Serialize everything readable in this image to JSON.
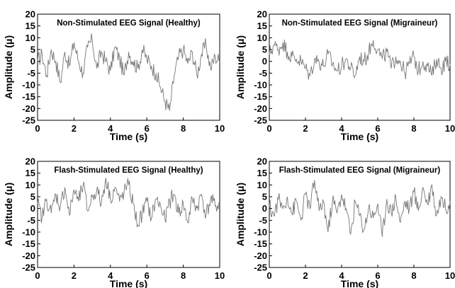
{
  "chart_data": [
    {
      "type": "line",
      "title": "Non-Stimulated EEG Signal (Healthy)",
      "xlabel": "Time (s)",
      "ylabel": "Amplitude (μ)",
      "xlim": [
        0,
        10
      ],
      "ylim": [
        -25,
        20
      ],
      "xticks": [
        "0",
        "2",
        "4",
        "6",
        "8",
        "10"
      ],
      "yticks": [
        "20",
        "15",
        "10",
        "5",
        "0",
        "-5",
        "-10",
        "-15",
        "-20",
        "-25"
      ],
      "grid": false,
      "line_color": "#777777",
      "series": [
        {
          "x": [
            0.0,
            0.25,
            0.5,
            0.75,
            1.0,
            1.25,
            1.5,
            1.75,
            2.0,
            2.25,
            2.5,
            2.75,
            3.0,
            3.25,
            3.5,
            3.75,
            4.0,
            4.25,
            4.5,
            4.75,
            5.0,
            5.25,
            5.5,
            5.75,
            6.0,
            6.25,
            6.5,
            6.75,
            7.0,
            7.25,
            7.5,
            7.75,
            8.0,
            8.25,
            8.5,
            8.75,
            9.0,
            9.25,
            9.5,
            9.75,
            10.0
          ],
          "values": [
            0,
            3,
            -6,
            5,
            0,
            -9,
            4,
            -2,
            8,
            0,
            -5,
            6,
            9,
            -3,
            4,
            0,
            -4,
            6,
            1,
            -6,
            4,
            0,
            -3,
            5,
            1,
            -2,
            -5,
            -11,
            -17,
            -21,
            -6,
            2,
            5,
            -1,
            4,
            -6,
            3,
            7,
            -3,
            2,
            0
          ]
        }
      ]
    },
    {
      "type": "line",
      "title": "Non-Stimulated EEG Signal (Migraineur)",
      "xlabel": "Time (s)",
      "ylabel": "Amplitude (μ)",
      "xlim": [
        0,
        10
      ],
      "ylim": [
        -25,
        20
      ],
      "xticks": [
        "0",
        "2",
        "4",
        "6",
        "8",
        "10"
      ],
      "yticks": [
        "20",
        "15",
        "10",
        "5",
        "0",
        "-5",
        "-10",
        "-15",
        "-20",
        "-25"
      ],
      "grid": false,
      "line_color": "#777777",
      "series": [
        {
          "x": [
            0.0,
            0.25,
            0.5,
            0.75,
            1.0,
            1.25,
            1.5,
            1.75,
            2.0,
            2.25,
            2.5,
            2.75,
            3.0,
            3.25,
            3.5,
            3.75,
            4.0,
            4.25,
            4.5,
            4.75,
            5.0,
            5.25,
            5.5,
            5.75,
            6.0,
            6.25,
            6.5,
            6.75,
            7.0,
            7.25,
            7.5,
            7.75,
            8.0,
            8.25,
            8.5,
            8.75,
            9.0,
            9.25,
            9.5,
            9.75,
            10.0
          ],
          "values": [
            3,
            7,
            5,
            8,
            4,
            2,
            1,
            0,
            -3,
            -6,
            1,
            0,
            -2,
            3,
            -1,
            -4,
            -2,
            1,
            -3,
            -6,
            2,
            0,
            4,
            9,
            5,
            1,
            4,
            -3,
            2,
            0,
            -5,
            -1,
            2,
            -4,
            0,
            -2,
            -6,
            1,
            -3,
            0,
            -1
          ]
        }
      ]
    },
    {
      "type": "line",
      "title": "Flash-Stimulated EEG Signal (Healthy)",
      "xlabel": "Time (s)",
      "ylabel": "Amplitude (μ)",
      "xlim": [
        0,
        10
      ],
      "ylim": [
        -25,
        20
      ],
      "xticks": [
        "0",
        "2",
        "4",
        "6",
        "8",
        "10"
      ],
      "yticks": [
        "20",
        "15",
        "10",
        "5",
        "0",
        "-5",
        "-10",
        "-15",
        "-20",
        "-25"
      ],
      "grid": false,
      "line_color": "#777777",
      "series": [
        {
          "x": [
            0.0,
            0.25,
            0.5,
            0.75,
            1.0,
            1.25,
            1.5,
            1.75,
            2.0,
            2.25,
            2.5,
            2.75,
            3.0,
            3.25,
            3.5,
            3.75,
            4.0,
            4.25,
            4.5,
            4.75,
            5.0,
            5.25,
            5.5,
            5.75,
            6.0,
            6.25,
            6.5,
            6.75,
            7.0,
            7.25,
            7.5,
            7.75,
            8.0,
            8.25,
            8.5,
            8.75,
            9.0,
            9.25,
            9.5,
            9.75,
            10.0
          ],
          "values": [
            2,
            -4,
            4,
            -2,
            6,
            1,
            9,
            -3,
            8,
            3,
            10,
            -1,
            5,
            8,
            2,
            13,
            4,
            9,
            3,
            7,
            10,
            2,
            -7,
            -2,
            3,
            -4,
            4,
            1,
            -5,
            3,
            6,
            -2,
            2,
            -6,
            4,
            0,
            6,
            -3,
            4,
            1,
            2
          ]
        }
      ]
    },
    {
      "type": "line",
      "title": "Flash-Stimulated EEG Signal (Migraineur)",
      "xlabel": "Time (s)",
      "ylabel": "Amplitude (μ)",
      "xlim": [
        0,
        10
      ],
      "ylim": [
        -25,
        20
      ],
      "xticks": [
        "0",
        "2",
        "4",
        "6",
        "8",
        "10"
      ],
      "yticks": [
        "20",
        "15",
        "10",
        "5",
        "0",
        "-5",
        "-10",
        "-15",
        "-20",
        "-25"
      ],
      "grid": false,
      "line_color": "#777777",
      "series": [
        {
          "x": [
            0.0,
            0.25,
            0.5,
            0.75,
            1.0,
            1.25,
            1.5,
            1.75,
            2.0,
            2.25,
            2.5,
            2.75,
            3.0,
            3.25,
            3.5,
            3.75,
            4.0,
            4.25,
            4.5,
            4.75,
            5.0,
            5.25,
            5.5,
            5.75,
            6.0,
            6.25,
            6.5,
            6.75,
            7.0,
            7.25,
            7.5,
            7.75,
            8.0,
            8.25,
            8.5,
            8.75,
            9.0,
            9.25,
            9.5,
            9.75,
            10.0
          ],
          "values": [
            1,
            -3,
            4,
            0,
            5,
            -2,
            3,
            -5,
            6,
            0,
            12,
            -1,
            3,
            -10,
            4,
            -2,
            6,
            0,
            -11,
            3,
            -3,
            -9,
            1,
            -4,
            2,
            -12,
            4,
            -2,
            5,
            -6,
            3,
            0,
            7,
            -1,
            9,
            2,
            10,
            -3,
            5,
            0,
            3
          ]
        }
      ]
    }
  ]
}
